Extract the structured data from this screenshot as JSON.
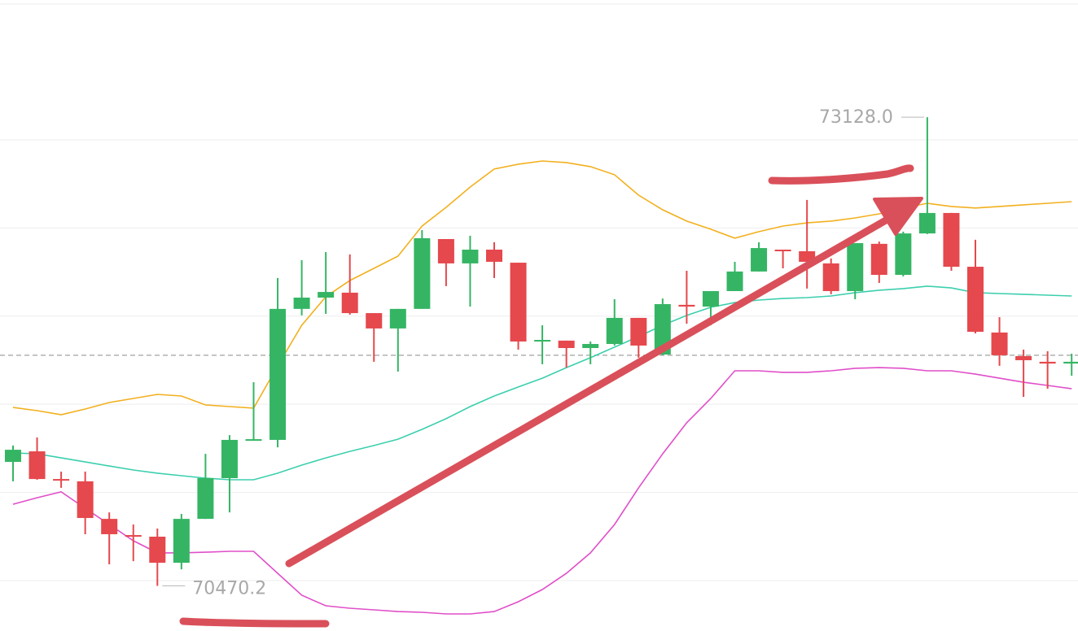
{
  "chart_data": {
    "type": "candlestick",
    "ylim": [
      70214,
      73793
    ],
    "grid_lines": [
      70500,
      71000,
      71500,
      72000,
      72500,
      73000
    ],
    "reference_line": 71778,
    "up_color": "#35b564",
    "down_color": "#e5484d",
    "open": [
      71173,
      71233,
      71076,
      71063,
      70850,
      70758,
      70749,
      70601,
      70850,
      71081,
      71293,
      71298,
      72041,
      72105,
      72133,
      72017,
      71930,
      72041,
      72437,
      72299,
      72377,
      72303,
      71856,
      71861,
      71819,
      71842,
      71990,
      71782,
      72064,
      72054,
      72142,
      72253,
      72377,
      72368,
      72299,
      72142,
      72410,
      72234,
      72469,
      72585,
      72280,
      71907,
      71773,
      71741,
      71731
    ],
    "high": [
      71266,
      71312,
      71118,
      71118,
      70887,
      70818,
      70795,
      70878,
      71219,
      71325,
      71625,
      72216,
      72317,
      72363,
      72350,
      72017,
      72041,
      72488,
      72437,
      72456,
      72419,
      72303,
      71948,
      71861,
      71856,
      72096,
      71990,
      72100,
      72257,
      72142,
      72308,
      72419,
      72377,
      72659,
      72327,
      72414,
      72423,
      72479,
      73128.0,
      72585,
      72433,
      71994,
      71810,
      71801,
      71787
    ],
    "low": [
      71063,
      71072,
      71026,
      70763,
      70592,
      70610,
      70470.2,
      70564,
      70850,
      70887,
      71293,
      71256,
      72004,
      72013,
      72008,
      71741,
      71685,
      72041,
      72170,
      72054,
      72216,
      71810,
      71727,
      71708,
      71727,
      71833,
      71764,
      71778,
      71957,
      71948,
      72142,
      72253,
      72271,
      72156,
      72124,
      72096,
      72188,
      72225,
      72465,
      72257,
      71902,
      71718,
      71542,
      71588,
      71662
    ],
    "close": [
      71242,
      71076,
      71067,
      70855,
      70763,
      70749,
      70601,
      70850,
      71081,
      71298,
      71302,
      72041,
      72105,
      72137,
      72017,
      71930,
      72041,
      72442,
      72299,
      72377,
      72308,
      71856,
      71865,
      71819,
      71842,
      71990,
      71833,
      72068,
      72054,
      72142,
      72253,
      72386,
      72368,
      72308,
      72142,
      72414,
      72234,
      72469,
      72585,
      72280,
      71911,
      71778,
      71750,
      71731,
      71741
    ],
    "lines": [
      {
        "color": "#f2b01e",
        "values": [
          71482,
          71464,
          71441,
          71473,
          71510,
          71533,
          71556,
          71547,
          71496,
          71487,
          71478,
          71718,
          71948,
          72110,
          72202,
          72271,
          72340,
          72511,
          72617,
          72732,
          72834,
          72862,
          72880,
          72871,
          72848,
          72802,
          72686,
          72603,
          72539,
          72493,
          72442,
          72479,
          72511,
          72529,
          72539,
          72557,
          72580,
          72613,
          72640,
          72622,
          72613,
          72622,
          72631,
          72640,
          72649
        ]
      },
      {
        "color": "#3ccfae",
        "values": [
          71224,
          71219,
          71196,
          71173,
          71150,
          71127,
          71109,
          71095,
          71081,
          71072,
          71072,
          71109,
          71155,
          71196,
          71233,
          71266,
          71302,
          71358,
          71418,
          71487,
          71547,
          71598,
          71648,
          71708,
          71764,
          71824,
          71884,
          71948,
          72004,
          72050,
          72077,
          72091,
          72100,
          72105,
          72114,
          72133,
          72147,
          72156,
          72170,
          72160,
          72133,
          72128,
          72124,
          72119,
          72114
        ]
      },
      {
        "color": "#e04fc9",
        "values": [
          70933,
          70970,
          71003,
          70910,
          70818,
          70726,
          70657,
          70657,
          70661,
          70666,
          70666,
          70541,
          70417,
          70357,
          70343,
          70334,
          70324,
          70320,
          70311,
          70311,
          70324,
          70380,
          70449,
          70541,
          70657,
          70818,
          71026,
          71219,
          71395,
          71533,
          71690,
          71690,
          71681,
          71681,
          71690,
          71704,
          71708,
          71704,
          71690,
          71690,
          71671,
          71648,
          71625,
          71607,
          71588
        ]
      }
    ],
    "annotations": [
      {
        "label": "73128.0",
        "value": 73128.0,
        "side": "left"
      },
      {
        "label": "70470.2",
        "value": 70470.2,
        "side": "right"
      }
    ]
  }
}
